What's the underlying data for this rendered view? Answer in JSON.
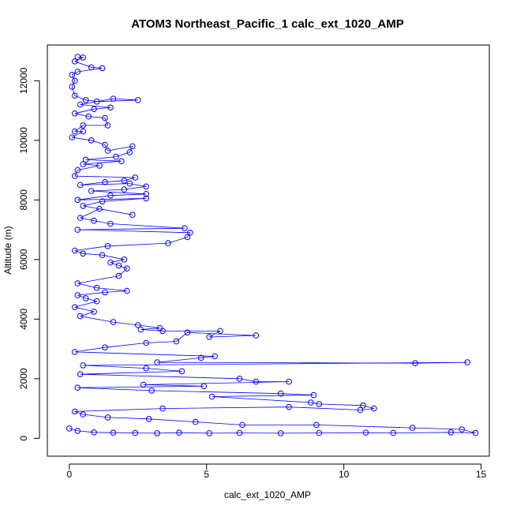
{
  "chart_data": {
    "type": "scatter",
    "mode": "points-and-lines",
    "title": "ATOM3 Northeast_Pacific_1 calc_ext_1020_AMP",
    "xlabel": "calc_ext_1020_AMP",
    "ylabel": "Altitude (m)",
    "xlim": [
      -0.8,
      15.3
    ],
    "ylim": [
      -600,
      13200
    ],
    "xticks": [
      0,
      5,
      10,
      15
    ],
    "yticks": [
      0,
      2000,
      4000,
      6000,
      8000,
      10000,
      12000
    ],
    "grid": false,
    "legend": "none",
    "marker": "open-circle",
    "color": "#0000ff",
    "series": [
      {
        "values": [
          [
            0.3,
            12800
          ],
          [
            0.5,
            12780
          ],
          [
            0.2,
            12650
          ],
          [
            0.8,
            12450
          ],
          [
            1.2,
            12420
          ],
          [
            0.3,
            12300
          ],
          [
            0.1,
            12200
          ],
          [
            0.2,
            12000
          ],
          [
            0.1,
            11800
          ],
          [
            0.2,
            11500
          ],
          [
            0.6,
            11350
          ],
          [
            1.0,
            11300
          ],
          [
            2.5,
            11350
          ],
          [
            1.6,
            11400
          ],
          [
            0.4,
            11200
          ],
          [
            1.5,
            11100
          ],
          [
            0.9,
            11050
          ],
          [
            0.2,
            10900
          ],
          [
            0.7,
            10800
          ],
          [
            1.3,
            10750
          ],
          [
            1.4,
            10500
          ],
          [
            0.5,
            10500
          ],
          [
            0.2,
            10300
          ],
          [
            0.5,
            10300
          ],
          [
            0.1,
            10100
          ],
          [
            0.8,
            10000
          ],
          [
            1.3,
            9850
          ],
          [
            1.4,
            9650
          ],
          [
            2.3,
            9800
          ],
          [
            2.2,
            9600
          ],
          [
            1.7,
            9450
          ],
          [
            0.6,
            9350
          ],
          [
            1.9,
            9300
          ],
          [
            0.5,
            9200
          ],
          [
            1.1,
            9150
          ],
          [
            0.3,
            9000
          ],
          [
            0.2,
            8800
          ],
          [
            2.4,
            8750
          ],
          [
            2.0,
            8650
          ],
          [
            1.3,
            8600
          ],
          [
            0.4,
            8500
          ],
          [
            2.2,
            8550
          ],
          [
            2.8,
            8450
          ],
          [
            2.0,
            8350
          ],
          [
            0.8,
            8300
          ],
          [
            2.8,
            8200
          ],
          [
            1.5,
            8150
          ],
          [
            0.3,
            8000
          ],
          [
            2.8,
            8050
          ],
          [
            1.2,
            7950
          ],
          [
            0.5,
            7800
          ],
          [
            2.3,
            7500
          ],
          [
            1.1,
            7700
          ],
          [
            0.4,
            7400
          ],
          [
            0.9,
            7300
          ],
          [
            1.5,
            7200
          ],
          [
            4.2,
            7050
          ],
          [
            0.3,
            7000
          ],
          [
            4.4,
            6900
          ],
          [
            4.3,
            6750
          ],
          [
            3.6,
            6550
          ],
          [
            1.4,
            6450
          ],
          [
            0.2,
            6300
          ],
          [
            0.5,
            6200
          ],
          [
            1.2,
            6150
          ],
          [
            2.0,
            6000
          ],
          [
            1.5,
            5900
          ],
          [
            1.8,
            5800
          ],
          [
            2.1,
            5700
          ],
          [
            1.8,
            5450
          ],
          [
            0.3,
            5200
          ],
          [
            1.0,
            5050
          ],
          [
            2.1,
            4950
          ],
          [
            1.3,
            4900
          ],
          [
            0.3,
            4800
          ],
          [
            0.6,
            4700
          ],
          [
            1.0,
            4600
          ],
          [
            0.2,
            4400
          ],
          [
            0.9,
            4250
          ],
          [
            0.4,
            4100
          ],
          [
            1.6,
            3900
          ],
          [
            2.5,
            3800
          ],
          [
            3.3,
            3700
          ],
          [
            2.6,
            3650
          ],
          [
            3.4,
            3600
          ],
          [
            5.5,
            3600
          ],
          [
            5.1,
            3400
          ],
          [
            6.8,
            3450
          ],
          [
            4.3,
            3550
          ],
          [
            3.9,
            3250
          ],
          [
            2.8,
            3200
          ],
          [
            1.3,
            3050
          ],
          [
            0.2,
            2900
          ],
          [
            5.3,
            2750
          ],
          [
            4.8,
            2700
          ],
          [
            3.2,
            2550
          ],
          [
            12.6,
            2520
          ],
          [
            14.5,
            2550
          ],
          [
            0.5,
            2450
          ],
          [
            2.8,
            2350
          ],
          [
            4.1,
            2250
          ],
          [
            0.4,
            2150
          ],
          [
            6.2,
            2000
          ],
          [
            6.8,
            1900
          ],
          [
            8.0,
            1900
          ],
          [
            2.7,
            1800
          ],
          [
            4.9,
            1750
          ],
          [
            0.3,
            1700
          ],
          [
            3.0,
            1600
          ],
          [
            7.7,
            1500
          ],
          [
            8.9,
            1450
          ],
          [
            5.2,
            1400
          ],
          [
            8.8,
            1200
          ],
          [
            9.1,
            1150
          ],
          [
            10.7,
            1100
          ],
          [
            11.1,
            1000
          ],
          [
            10.6,
            950
          ],
          [
            8.0,
            1050
          ],
          [
            3.4,
            1000
          ],
          [
            0.2,
            900
          ],
          [
            0.5,
            800
          ],
          [
            1.4,
            700
          ],
          [
            2.9,
            650
          ],
          [
            4.6,
            550
          ],
          [
            6.3,
            450
          ],
          [
            9.0,
            450
          ],
          [
            12.5,
            350
          ],
          [
            14.3,
            300
          ],
          [
            14.8,
            180
          ],
          [
            13.9,
            200
          ],
          [
            11.8,
            180
          ],
          [
            10.8,
            190
          ],
          [
            9.1,
            180
          ],
          [
            7.7,
            170
          ],
          [
            6.2,
            180
          ],
          [
            5.1,
            170
          ],
          [
            4.0,
            190
          ],
          [
            3.2,
            170
          ],
          [
            2.4,
            180
          ],
          [
            1.6,
            190
          ],
          [
            0.9,
            200
          ],
          [
            0.3,
            250
          ],
          [
            0.0,
            330
          ]
        ]
      }
    ]
  }
}
